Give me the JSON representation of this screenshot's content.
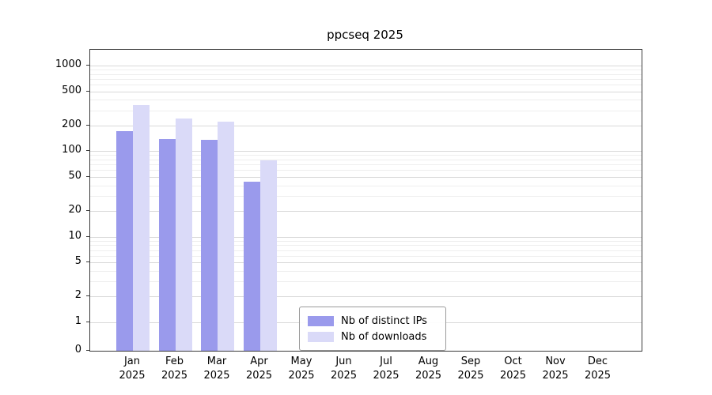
{
  "title": "ppcseq 2025",
  "chart_data": {
    "type": "bar",
    "title": "ppcseq 2025",
    "categories": [
      "Jan",
      "Feb",
      "Mar",
      "Apr",
      "May",
      "Jun",
      "Jul",
      "Aug",
      "Sep",
      "Oct",
      "Nov",
      "Dec"
    ],
    "year_label": "2025",
    "series": [
      {
        "name": "Nb of distinct IPs",
        "color": "#9a9aec",
        "values": [
          170,
          140,
          135,
          44,
          0,
          0,
          0,
          0,
          0,
          0,
          0,
          0
        ]
      },
      {
        "name": "Nb of downloads",
        "color": "#dadaf8",
        "values": [
          350,
          240,
          220,
          78,
          0,
          0,
          0,
          0,
          0,
          0,
          0,
          0
        ]
      }
    ],
    "yscale": "symlog",
    "ylim": [
      0,
      1000
    ],
    "y_major_ticks": [
      0,
      1,
      2,
      5,
      10,
      20,
      50,
      100,
      200,
      500,
      1000
    ],
    "y_minor_ticks": [
      3,
      4,
      6,
      7,
      8,
      9,
      30,
      40,
      60,
      70,
      80,
      90,
      300,
      400,
      600,
      700,
      800,
      900
    ],
    "grid": true,
    "legend_position": "lower center",
    "xlabel": "",
    "ylabel": ""
  },
  "legend": {
    "items": [
      {
        "label": "Nb of distinct IPs"
      },
      {
        "label": "Nb of downloads"
      }
    ]
  },
  "colors": {
    "distinct_ips_bar": "#9a9aec",
    "downloads_bar": "#dadaf8",
    "grid_major": "#d9d9d9",
    "grid_minor": "#eeeeee",
    "axis": "#3a3a3a",
    "background": "#ffffff"
  }
}
